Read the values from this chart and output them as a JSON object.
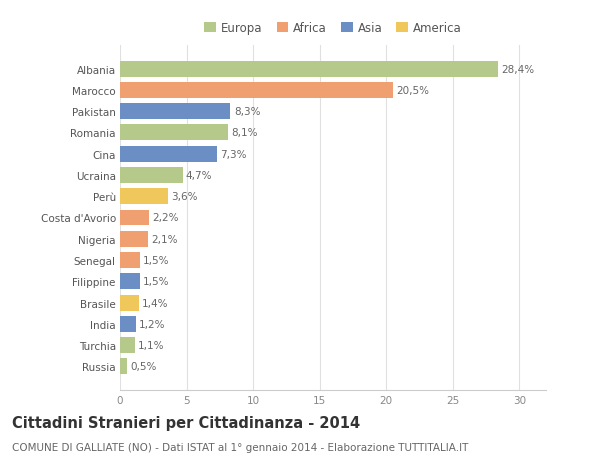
{
  "categories": [
    "Russia",
    "Turchia",
    "India",
    "Brasile",
    "Filippine",
    "Senegal",
    "Nigeria",
    "Costa d'Avorio",
    "Perù",
    "Ucraina",
    "Cina",
    "Romania",
    "Pakistan",
    "Marocco",
    "Albania"
  ],
  "values": [
    0.5,
    1.1,
    1.2,
    1.4,
    1.5,
    1.5,
    2.1,
    2.2,
    3.6,
    4.7,
    7.3,
    8.1,
    8.3,
    20.5,
    28.4
  ],
  "labels": [
    "0,5%",
    "1,1%",
    "1,2%",
    "1,4%",
    "1,5%",
    "1,5%",
    "2,1%",
    "2,2%",
    "3,6%",
    "4,7%",
    "7,3%",
    "8,1%",
    "8,3%",
    "20,5%",
    "28,4%"
  ],
  "colors": [
    "#b5c98a",
    "#b5c98a",
    "#6b8ec4",
    "#f0c75a",
    "#6b8ec4",
    "#f0a070",
    "#f0a070",
    "#f0a070",
    "#f0c75a",
    "#b5c98a",
    "#6b8ec4",
    "#b5c98a",
    "#6b8ec4",
    "#f0a070",
    "#b5c98a"
  ],
  "legend_labels": [
    "Europa",
    "Africa",
    "Asia",
    "America"
  ],
  "legend_colors": [
    "#b5c98a",
    "#f0a070",
    "#6b8ec4",
    "#f0c75a"
  ],
  "title": "Cittadini Stranieri per Cittadinanza - 2014",
  "subtitle": "COMUNE DI GALLIATE (NO) - Dati ISTAT al 1° gennaio 2014 - Elaborazione TUTTITALIA.IT",
  "xlim": [
    0,
    32
  ],
  "xticks": [
    0,
    5,
    10,
    15,
    20,
    25,
    30
  ],
  "background_color": "#ffffff",
  "grid_color": "#e0e0e0",
  "bar_height": 0.75,
  "title_fontsize": 10.5,
  "subtitle_fontsize": 7.5,
  "label_fontsize": 7.5,
  "tick_fontsize": 7.5,
  "legend_fontsize": 8.5
}
